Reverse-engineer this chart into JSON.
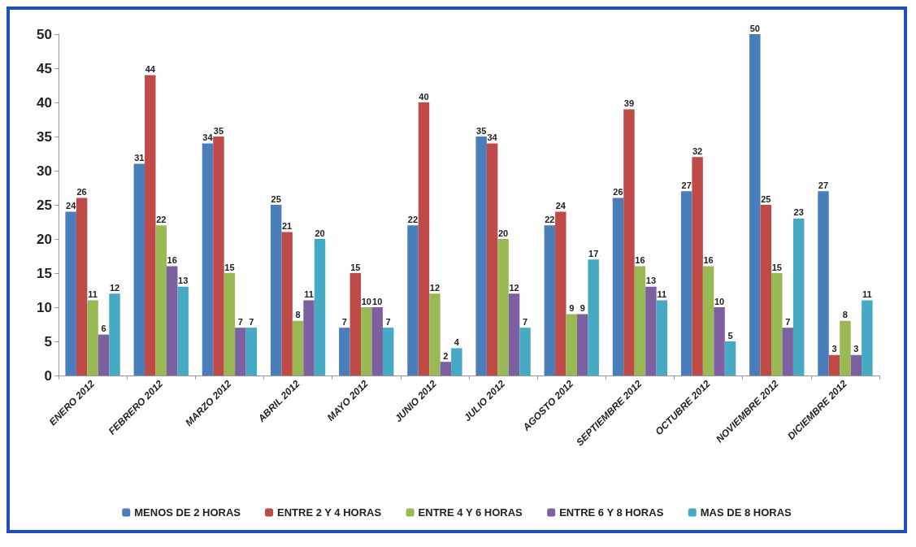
{
  "chart_data": {
    "type": "bar",
    "categories": [
      "ENERO 2012",
      "FEBRERO 2012",
      "MARZO 2012",
      "ABRIL 2012",
      "MAYO 2012",
      "JUNIO 2012",
      "JULIO 2012",
      "AGOSTO 2012",
      "SEPTIEMBRE 2012",
      "OCTUBRE 2012",
      "NOVIEMBRE 2012",
      "DICIEMBRE 2012"
    ],
    "series": [
      {
        "name": "MENOS DE 2 HORAS",
        "color": "#4a7ebb",
        "values": [
          24,
          31,
          34,
          25,
          7,
          22,
          35,
          22,
          26,
          27,
          50,
          27
        ]
      },
      {
        "name": "ENTRE 2 Y 4 HORAS",
        "color": "#be4b48",
        "values": [
          26,
          44,
          35,
          21,
          15,
          40,
          34,
          24,
          39,
          32,
          25,
          3
        ]
      },
      {
        "name": "ENTRE 4 Y 6 HORAS",
        "color": "#98b954",
        "values": [
          11,
          22,
          15,
          8,
          10,
          12,
          20,
          9,
          16,
          16,
          15,
          8
        ]
      },
      {
        "name": "ENTRE 6 Y 8 HORAS",
        "color": "#7d60a0",
        "values": [
          6,
          16,
          7,
          11,
          10,
          2,
          12,
          9,
          13,
          10,
          7,
          3
        ]
      },
      {
        "name": "MAS DE 8 HORAS",
        "color": "#46aac5",
        "values": [
          12,
          13,
          7,
          20,
          7,
          4,
          7,
          17,
          11,
          5,
          23,
          11
        ]
      }
    ],
    "ylim": [
      0,
      50
    ],
    "yticks": [
      0,
      5,
      10,
      15,
      20,
      25,
      30,
      35,
      40,
      45,
      50
    ],
    "data_labels": true,
    "legend": "bottom",
    "grid": false
  }
}
